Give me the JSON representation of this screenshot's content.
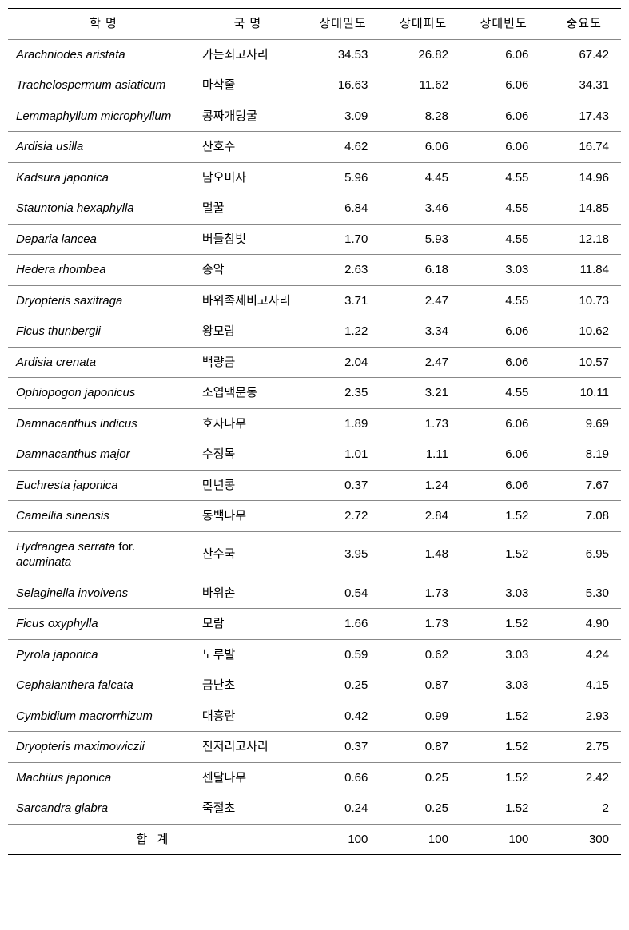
{
  "columns": {
    "scientific": "학     명",
    "korean": "국     명",
    "rel_density": "상대밀도",
    "rel_cover": "상대피도",
    "rel_freq": "상대빈도",
    "importance": "중요도"
  },
  "rows": [
    {
      "sci": "Arachniodes aristata",
      "kor": "가는쇠고사리",
      "d": "34.53",
      "p": "26.82",
      "f": "6.06",
      "i": "67.42"
    },
    {
      "sci": "Trachelospermum asiaticum",
      "kor": "마삭줄",
      "d": "16.63",
      "p": "11.62",
      "f": "6.06",
      "i": "34.31"
    },
    {
      "sci": "Lemmaphyllum microphyllum",
      "kor": "콩짜개덩굴",
      "d": "3.09",
      "p": "8.28",
      "f": "6.06",
      "i": "17.43"
    },
    {
      "sci": "Ardisia usilla",
      "kor": "산호수",
      "d": "4.62",
      "p": "6.06",
      "f": "6.06",
      "i": "16.74"
    },
    {
      "sci": "Kadsura japonica",
      "kor": "남오미자",
      "d": "5.96",
      "p": "4.45",
      "f": "4.55",
      "i": "14.96"
    },
    {
      "sci": "Stauntonia hexaphylla",
      "kor": "멀꿀",
      "d": "6.84",
      "p": "3.46",
      "f": "4.55",
      "i": "14.85"
    },
    {
      "sci": "Deparia lancea",
      "kor": "버들참빗",
      "d": "1.70",
      "p": "5.93",
      "f": "4.55",
      "i": "12.18"
    },
    {
      "sci": "Hedera rhombea",
      "kor": "송악",
      "d": "2.63",
      "p": "6.18",
      "f": "3.03",
      "i": "11.84"
    },
    {
      "sci": "Dryopteris saxifraga",
      "kor": "바위족제비고사리",
      "d": "3.71",
      "p": "2.47",
      "f": "4.55",
      "i": "10.73"
    },
    {
      "sci": "Ficus thunbergii",
      "kor": "왕모람",
      "d": "1.22",
      "p": "3.34",
      "f": "6.06",
      "i": "10.62"
    },
    {
      "sci": "Ardisia crenata",
      "kor": "백량금",
      "d": "2.04",
      "p": "2.47",
      "f": "6.06",
      "i": "10.57"
    },
    {
      "sci": "Ophiopogon japonicus",
      "kor": "소엽맥문동",
      "d": "2.35",
      "p": "3.21",
      "f": "4.55",
      "i": "10.11"
    },
    {
      "sci": "Damnacanthus indicus",
      "kor": "호자나무",
      "d": "1.89",
      "p": "1.73",
      "f": "6.06",
      "i": "9.69"
    },
    {
      "sci": "Damnacanthus major",
      "kor": "수정목",
      "d": "1.01",
      "p": "1.11",
      "f": "6.06",
      "i": "8.19"
    },
    {
      "sci": "Euchresta japonica",
      "kor": "만년콩",
      "d": "0.37",
      "p": "1.24",
      "f": "6.06",
      "i": "7.67"
    },
    {
      "sci": "Camellia sinensis",
      "kor": "동백나무",
      "d": "2.72",
      "p": "2.84",
      "f": "1.52",
      "i": "7.08"
    },
    {
      "sci": "Hydrangea serrata <span class=\"non-italic\">for.</span> acuminata",
      "kor": "산수국",
      "d": "3.95",
      "p": "1.48",
      "f": "1.52",
      "i": "6.95"
    },
    {
      "sci": "Selaginella involvens",
      "kor": "바위손",
      "d": "0.54",
      "p": "1.73",
      "f": "3.03",
      "i": "5.30"
    },
    {
      "sci": "Ficus oxyphylla",
      "kor": "모람",
      "d": "1.66",
      "p": "1.73",
      "f": "1.52",
      "i": "4.90"
    },
    {
      "sci": "Pyrola japonica",
      "kor": "노루발",
      "d": "0.59",
      "p": "0.62",
      "f": "3.03",
      "i": "4.24"
    },
    {
      "sci": "Cephalanthera falcata",
      "kor": "금난초",
      "d": "0.25",
      "p": "0.87",
      "f": "3.03",
      "i": "4.15"
    },
    {
      "sci": "Cymbidium macrorrhizum",
      "kor": "대흥란",
      "d": "0.42",
      "p": "0.99",
      "f": "1.52",
      "i": "2.93"
    },
    {
      "sci": "Dryopteris maximowiczii",
      "kor": "진저리고사리",
      "d": "0.37",
      "p": "0.87",
      "f": "1.52",
      "i": "2.75"
    },
    {
      "sci": "Machilus japonica",
      "kor": "센달나무",
      "d": "0.66",
      "p": "0.25",
      "f": "1.52",
      "i": "2.42"
    },
    {
      "sci": "Sarcandra glabra",
      "kor": "죽절초",
      "d": "0.24",
      "p": "0.25",
      "f": "1.52",
      "i": "2"
    }
  ],
  "totals": {
    "label": "합     계",
    "d": "100",
    "p": "100",
    "f": "100",
    "i": "300"
  }
}
